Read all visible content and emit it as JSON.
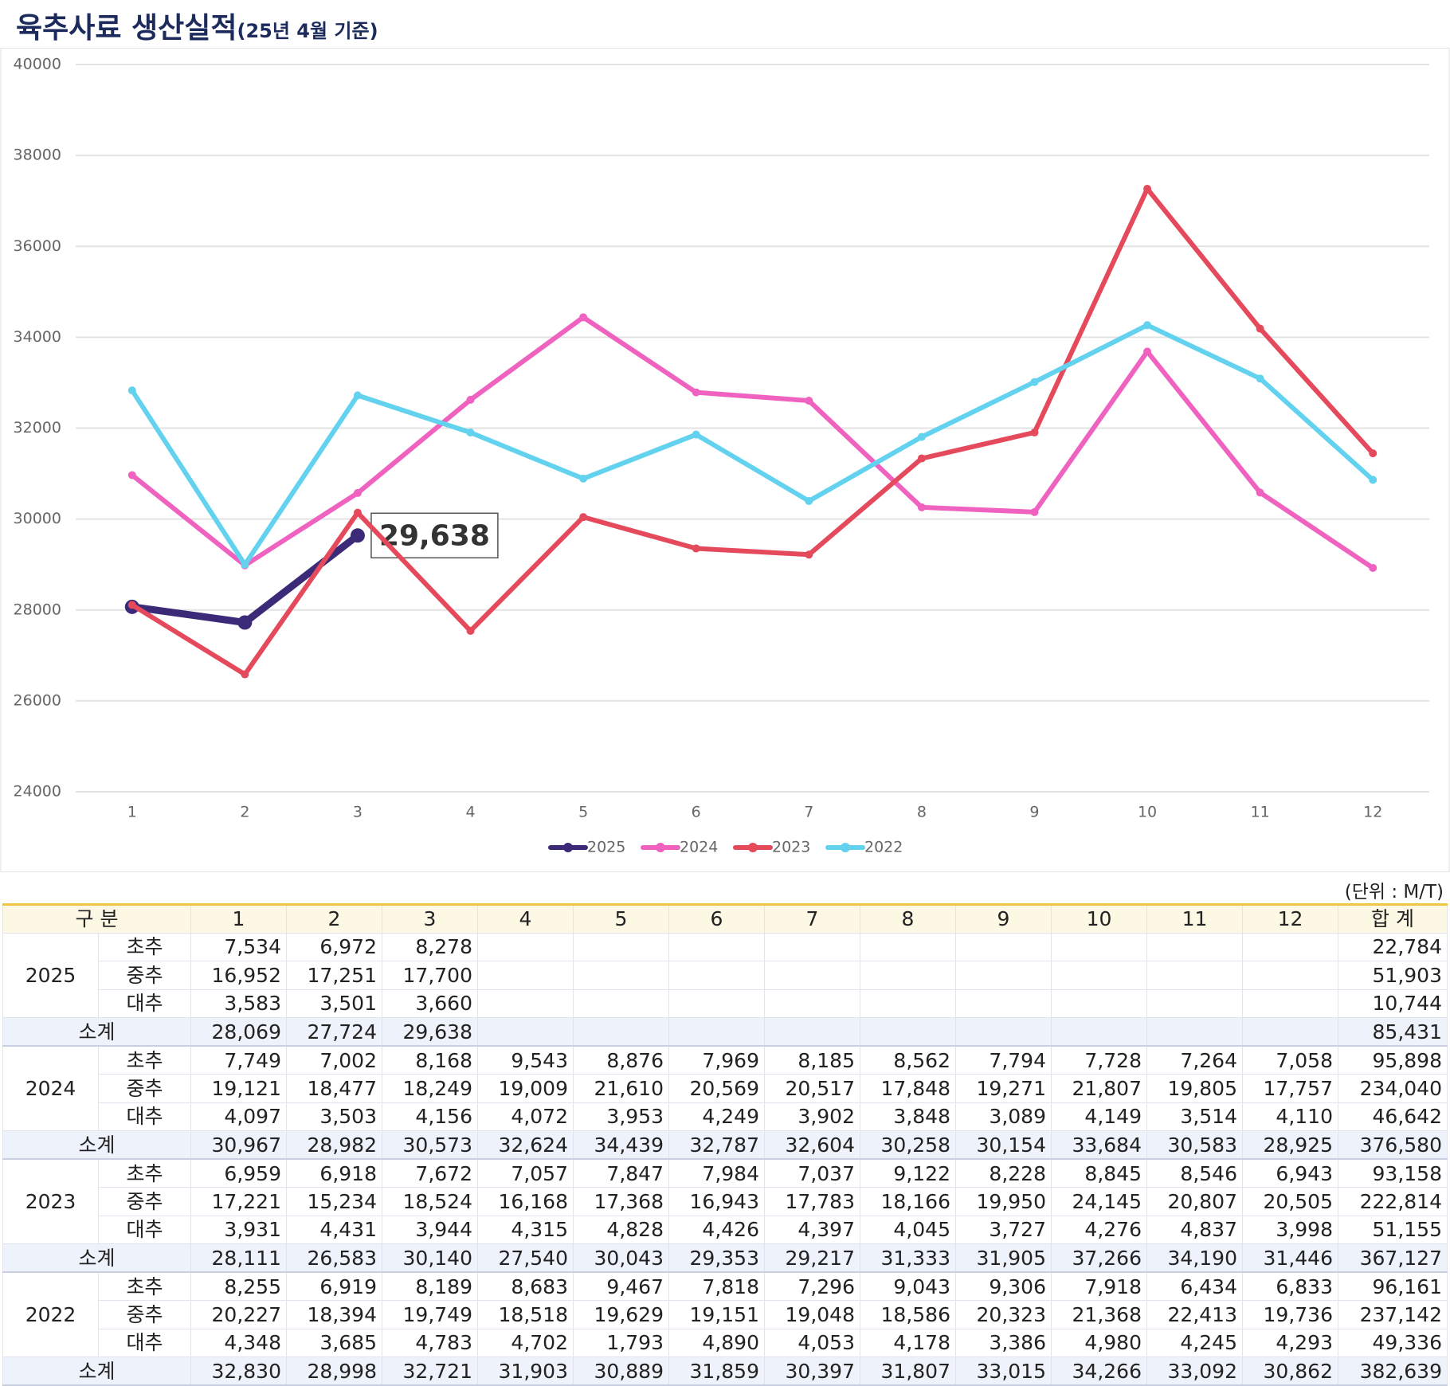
{
  "chart_data": {
    "type": "line",
    "title": "육추사료 생산실적",
    "subtitle": "(25년 4월 기준)",
    "categories": [
      "1",
      "2",
      "3",
      "4",
      "5",
      "6",
      "7",
      "8",
      "9",
      "10",
      "11",
      "12"
    ],
    "ylim": [
      24000,
      40000
    ],
    "yticks": [
      24000,
      26000,
      28000,
      30000,
      32000,
      34000,
      36000,
      38000,
      40000
    ],
    "grid": true,
    "legend": "bottom",
    "series": [
      {
        "name": "2025",
        "color": "#3b2a78",
        "values": [
          28069,
          27724,
          29638,
          null,
          null,
          null,
          null,
          null,
          null,
          null,
          null,
          null
        ],
        "value_labels": [
          null,
          null,
          "29,638",
          null,
          null,
          null,
          null,
          null,
          null,
          null,
          null,
          null
        ]
      },
      {
        "name": "2024",
        "color": "#ef62c0",
        "values": [
          30967,
          28982,
          30573,
          32624,
          34439,
          32787,
          32604,
          30258,
          30154,
          33684,
          30583,
          28925
        ]
      },
      {
        "name": "2023",
        "color": "#e54a5c",
        "values": [
          28111,
          26583,
          30140,
          27540,
          30043,
          29353,
          29217,
          31333,
          31905,
          37266,
          34190,
          31446
        ]
      },
      {
        "name": "2022",
        "color": "#62d2ef",
        "values": [
          32830,
          28998,
          32721,
          31903,
          30889,
          31859,
          30397,
          31807,
          33015,
          34266,
          33092,
          30862
        ]
      }
    ]
  },
  "table": {
    "unit": "(단위 : M/T)",
    "header": [
      "구 분",
      "1",
      "2",
      "3",
      "4",
      "5",
      "6",
      "7",
      "8",
      "9",
      "10",
      "11",
      "12",
      "합 계"
    ],
    "groups": [
      {
        "year": "2025",
        "rows": [
          {
            "label": "초추",
            "values": [
              "7,534",
              "6,972",
              "8,278"
            ],
            "total": "22,784"
          },
          {
            "label": "중추",
            "values": [
              "16,952",
              "17,251",
              "17,700"
            ],
            "total": "51,903"
          },
          {
            "label": "대추",
            "values": [
              "3,583",
              "3,501",
              "3,660"
            ],
            "total": "10,744"
          }
        ],
        "subtotal": {
          "label": "소계",
          "values": [
            "28,069",
            "27,724",
            "29,638"
          ],
          "total": "85,431"
        }
      },
      {
        "year": "2024",
        "rows": [
          {
            "label": "초추",
            "values": [
              "7,749",
              "7,002",
              "8,168",
              "9,543",
              "8,876",
              "7,969",
              "8,185",
              "8,562",
              "7,794",
              "7,728",
              "7,264",
              "7,058"
            ],
            "total": "95,898"
          },
          {
            "label": "중추",
            "values": [
              "19,121",
              "18,477",
              "18,249",
              "19,009",
              "21,610",
              "20,569",
              "20,517",
              "17,848",
              "19,271",
              "21,807",
              "19,805",
              "17,757"
            ],
            "total": "234,040"
          },
          {
            "label": "대추",
            "values": [
              "4,097",
              "3,503",
              "4,156",
              "4,072",
              "3,953",
              "4,249",
              "3,902",
              "3,848",
              "3,089",
              "4,149",
              "3,514",
              "4,110"
            ],
            "total": "46,642"
          }
        ],
        "subtotal": {
          "label": "소계",
          "values": [
            "30,967",
            "28,982",
            "30,573",
            "32,624",
            "34,439",
            "32,787",
            "32,604",
            "30,258",
            "30,154",
            "33,684",
            "30,583",
            "28,925"
          ],
          "total": "376,580"
        }
      },
      {
        "year": "2023",
        "rows": [
          {
            "label": "초추",
            "values": [
              "6,959",
              "6,918",
              "7,672",
              "7,057",
              "7,847",
              "7,984",
              "7,037",
              "9,122",
              "8,228",
              "8,845",
              "8,546",
              "6,943"
            ],
            "total": "93,158"
          },
          {
            "label": "중추",
            "values": [
              "17,221",
              "15,234",
              "18,524",
              "16,168",
              "17,368",
              "16,943",
              "17,783",
              "18,166",
              "19,950",
              "24,145",
              "20,807",
              "20,505"
            ],
            "total": "222,814"
          },
          {
            "label": "대추",
            "values": [
              "3,931",
              "4,431",
              "3,944",
              "4,315",
              "4,828",
              "4,426",
              "4,397",
              "4,045",
              "3,727",
              "4,276",
              "4,837",
              "3,998"
            ],
            "total": "51,155"
          }
        ],
        "subtotal": {
          "label": "소계",
          "values": [
            "28,111",
            "26,583",
            "30,140",
            "27,540",
            "30,043",
            "29,353",
            "29,217",
            "31,333",
            "31,905",
            "37,266",
            "34,190",
            "31,446"
          ],
          "total": "367,127"
        }
      },
      {
        "year": "2022",
        "rows": [
          {
            "label": "초추",
            "values": [
              "8,255",
              "6,919",
              "8,189",
              "8,683",
              "9,467",
              "7,818",
              "7,296",
              "9,043",
              "9,306",
              "7,918",
              "6,434",
              "6,833"
            ],
            "total": "96,161"
          },
          {
            "label": "중추",
            "values": [
              "20,227",
              "18,394",
              "19,749",
              "18,518",
              "19,629",
              "19,151",
              "19,048",
              "18,586",
              "20,323",
              "21,368",
              "22,413",
              "19,736"
            ],
            "total": "237,142"
          },
          {
            "label": "대추",
            "values": [
              "4,348",
              "3,685",
              "4,783",
              "4,702",
              "1,793",
              "4,890",
              "4,053",
              "4,178",
              "3,386",
              "4,980",
              "4,245",
              "4,293"
            ],
            "total": "49,336"
          }
        ],
        "subtotal": {
          "label": "소계",
          "values": [
            "32,830",
            "28,998",
            "32,721",
            "31,903",
            "30,889",
            "31,859",
            "30,397",
            "31,807",
            "33,015",
            "34,266",
            "33,092",
            "30,862"
          ],
          "total": "382,639"
        }
      }
    ]
  }
}
